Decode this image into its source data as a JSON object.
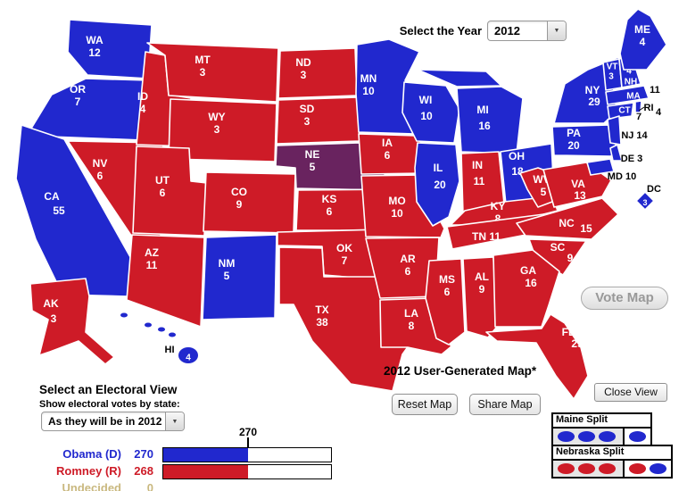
{
  "colors": {
    "dem": "#2128ce",
    "rep": "#ce1b27",
    "split": "#69235f",
    "undecided": "#c9b87f"
  },
  "year_selector": {
    "label": "Select the Year",
    "value": "2012"
  },
  "map": {
    "title": "2012 User-Generated Map*",
    "states": [
      {
        "abbr": "WA",
        "ev": 12,
        "party": "dem"
      },
      {
        "abbr": "OR",
        "ev": 7,
        "party": "dem"
      },
      {
        "abbr": "CA",
        "ev": 55,
        "party": "dem"
      },
      {
        "abbr": "NV",
        "ev": 6,
        "party": "rep"
      },
      {
        "abbr": "ID",
        "ev": 4,
        "party": "rep"
      },
      {
        "abbr": "MT",
        "ev": 3,
        "party": "rep"
      },
      {
        "abbr": "WY",
        "ev": 3,
        "party": "rep"
      },
      {
        "abbr": "UT",
        "ev": 6,
        "party": "rep"
      },
      {
        "abbr": "CO",
        "ev": 9,
        "party": "rep"
      },
      {
        "abbr": "AZ",
        "ev": 11,
        "party": "rep"
      },
      {
        "abbr": "NM",
        "ev": 5,
        "party": "dem"
      },
      {
        "abbr": "AK",
        "ev": 3,
        "party": "rep"
      },
      {
        "abbr": "HI",
        "ev": 4,
        "party": "dem"
      },
      {
        "abbr": "ND",
        "ev": 3,
        "party": "rep"
      },
      {
        "abbr": "SD",
        "ev": 3,
        "party": "rep"
      },
      {
        "abbr": "NE",
        "ev": 5,
        "party": "split"
      },
      {
        "abbr": "KS",
        "ev": 6,
        "party": "rep"
      },
      {
        "abbr": "OK",
        "ev": 7,
        "party": "rep"
      },
      {
        "abbr": "TX",
        "ev": 38,
        "party": "rep"
      },
      {
        "abbr": "MN",
        "ev": 10,
        "party": "dem"
      },
      {
        "abbr": "IA",
        "ev": 6,
        "party": "rep"
      },
      {
        "abbr": "MO",
        "ev": 10,
        "party": "rep"
      },
      {
        "abbr": "AR",
        "ev": 6,
        "party": "rep"
      },
      {
        "abbr": "LA",
        "ev": 8,
        "party": "rep"
      },
      {
        "abbr": "WI",
        "ev": 10,
        "party": "dem"
      },
      {
        "abbr": "IL",
        "ev": 20,
        "party": "dem"
      },
      {
        "abbr": "MS",
        "ev": 6,
        "party": "rep"
      },
      {
        "abbr": "MI",
        "ev": 16,
        "party": "dem"
      },
      {
        "abbr": "IN",
        "ev": 11,
        "party": "rep"
      },
      {
        "abbr": "OH",
        "ev": 18,
        "party": "dem"
      },
      {
        "abbr": "KY",
        "ev": 8,
        "party": "rep"
      },
      {
        "abbr": "TN",
        "ev": 11,
        "party": "rep"
      },
      {
        "abbr": "AL",
        "ev": 9,
        "party": "rep"
      },
      {
        "abbr": "WV",
        "ev": 5,
        "party": "rep"
      },
      {
        "abbr": "VA",
        "ev": 13,
        "party": "rep"
      },
      {
        "abbr": "NC",
        "ev": 15,
        "party": "rep"
      },
      {
        "abbr": "SC",
        "ev": 9,
        "party": "rep"
      },
      {
        "abbr": "GA",
        "ev": 16,
        "party": "rep"
      },
      {
        "abbr": "FL",
        "ev": 29,
        "party": "rep"
      },
      {
        "abbr": "PA",
        "ev": 20,
        "party": "dem"
      },
      {
        "abbr": "NY",
        "ev": 29,
        "party": "dem"
      },
      {
        "abbr": "VT",
        "ev": 3,
        "party": "dem"
      },
      {
        "abbr": "NH",
        "ev": 4,
        "party": "dem"
      },
      {
        "abbr": "ME",
        "ev": 4,
        "party": "dem"
      },
      {
        "abbr": "MA",
        "ev": 11,
        "party": "dem"
      },
      {
        "abbr": "CT",
        "ev": 7,
        "party": "dem"
      },
      {
        "abbr": "RI",
        "ev": 4,
        "party": "dem"
      },
      {
        "abbr": "NJ",
        "ev": 14,
        "party": "dem"
      },
      {
        "abbr": "DE",
        "ev": 3,
        "party": "dem"
      },
      {
        "abbr": "MD",
        "ev": 10,
        "party": "dem"
      },
      {
        "abbr": "DC",
        "ev": 3,
        "party": "dem"
      }
    ]
  },
  "buttons": {
    "vote_map": "Vote Map",
    "reset_map": "Reset Map",
    "share_map": "Share Map",
    "close_view": "Close View"
  },
  "splits": {
    "maine": {
      "title": "Maine Split",
      "groups": [
        [
          "dem",
          "dem",
          "dem"
        ],
        [
          "dem"
        ]
      ]
    },
    "nebraska": {
      "title": "Nebraska Split",
      "groups": [
        [
          "rep",
          "rep",
          "rep"
        ],
        [
          "rep",
          "dem"
        ]
      ]
    }
  },
  "electoral_view": {
    "title": "Select an Electoral View",
    "subtitle": "Show electoral votes by state:",
    "value": "As they will be in 2012"
  },
  "tally": {
    "threshold": 270,
    "total": 538,
    "rows": [
      {
        "name": "Obama (D)",
        "votes": 270,
        "party": "dem"
      },
      {
        "name": "Romney (R)",
        "votes": 268,
        "party": "rep"
      },
      {
        "name": "Undecided",
        "votes": 0,
        "party": "undecided"
      }
    ]
  }
}
